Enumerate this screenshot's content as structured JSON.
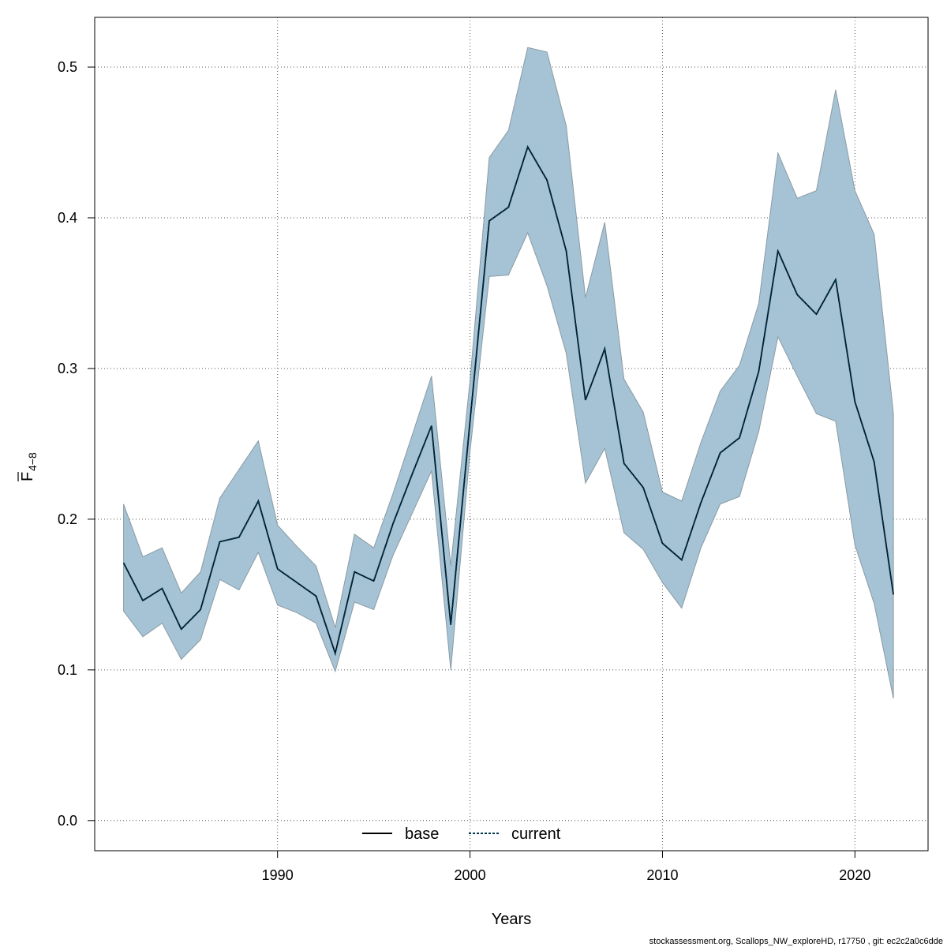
{
  "chart_data": {
    "type": "line",
    "title": "",
    "xlabel": "Years",
    "ylabel_main": "F",
    "ylabel_sub": "4−8",
    "xlim": [
      1980.5,
      2023.8
    ],
    "ylim": [
      -0.02,
      0.533
    ],
    "x_ticks": [
      1990,
      2000,
      2010,
      2020
    ],
    "y_ticks": [
      0.0,
      0.1,
      0.2,
      0.3,
      0.4,
      0.5
    ],
    "y_tick_labels": [
      "0.0",
      "0.1",
      "0.2",
      "0.3",
      "0.4",
      "0.5"
    ],
    "grid": true,
    "legend": {
      "position": "bottom-center",
      "entries": [
        "base",
        "current"
      ]
    },
    "band_color": "#a5c3d4",
    "band_edge_color": "#8a9aa4",
    "line_color": "#003550",
    "base_color": "#000000",
    "years": [
      1982,
      1983,
      1984,
      1985,
      1986,
      1987,
      1988,
      1989,
      1990,
      1991,
      1992,
      1993,
      1994,
      1995,
      1996,
      1997,
      1998,
      1999,
      2000,
      2001,
      2002,
      2003,
      2004,
      2005,
      2006,
      2007,
      2008,
      2009,
      2010,
      2011,
      2012,
      2013,
      2014,
      2015,
      2016,
      2017,
      2018,
      2019,
      2020,
      2021,
      2022
    ],
    "series": [
      {
        "name": "base",
        "values": [
          0.171,
          0.146,
          0.154,
          0.127,
          0.14,
          0.185,
          0.188,
          0.212,
          0.167,
          0.158,
          0.149,
          0.111,
          0.165,
          0.159,
          0.197,
          0.23,
          0.262,
          0.13,
          0.265,
          0.398,
          0.407,
          0.447,
          0.425,
          0.378,
          0.279,
          0.313,
          0.237,
          0.221,
          0.184,
          0.173,
          0.211,
          0.244,
          0.254,
          0.298,
          0.378,
          0.349,
          0.336,
          0.359,
          0.278,
          0.238,
          0.15
        ]
      },
      {
        "name": "current",
        "values": [
          0.171,
          0.146,
          0.154,
          0.127,
          0.14,
          0.185,
          0.188,
          0.212,
          0.167,
          0.158,
          0.149,
          0.111,
          0.165,
          0.159,
          0.197,
          0.23,
          0.262,
          0.13,
          0.265,
          0.398,
          0.407,
          0.447,
          0.425,
          0.378,
          0.279,
          0.313,
          0.237,
          0.221,
          0.184,
          0.173,
          0.211,
          0.244,
          0.254,
          0.298,
          0.378,
          0.349,
          0.336,
          0.359,
          0.278,
          0.238,
          0.15
        ]
      }
    ],
    "band_upper": [
      0.21,
      0.175,
      0.181,
      0.151,
      0.165,
      0.214,
      0.233,
      0.252,
      0.196,
      0.182,
      0.169,
      0.128,
      0.19,
      0.181,
      0.217,
      0.256,
      0.295,
      0.169,
      0.292,
      0.44,
      0.458,
      0.513,
      0.51,
      0.461,
      0.347,
      0.397,
      0.293,
      0.271,
      0.218,
      0.212,
      0.251,
      0.285,
      0.302,
      0.343,
      0.443,
      0.413,
      0.418,
      0.485,
      0.418,
      0.389,
      0.27
    ],
    "band_lower": [
      0.139,
      0.122,
      0.131,
      0.107,
      0.12,
      0.16,
      0.153,
      0.178,
      0.143,
      0.138,
      0.131,
      0.099,
      0.145,
      0.14,
      0.176,
      0.204,
      0.232,
      0.1,
      0.245,
      0.361,
      0.362,
      0.39,
      0.355,
      0.31,
      0.224,
      0.247,
      0.191,
      0.18,
      0.158,
      0.141,
      0.181,
      0.21,
      0.215,
      0.258,
      0.321,
      0.295,
      0.27,
      0.265,
      0.183,
      0.144,
      0.081
    ]
  },
  "footer": "stockassessment.org, Scallops_NW_exploreHD, r17750 , git: ec2c2a0c6dde"
}
